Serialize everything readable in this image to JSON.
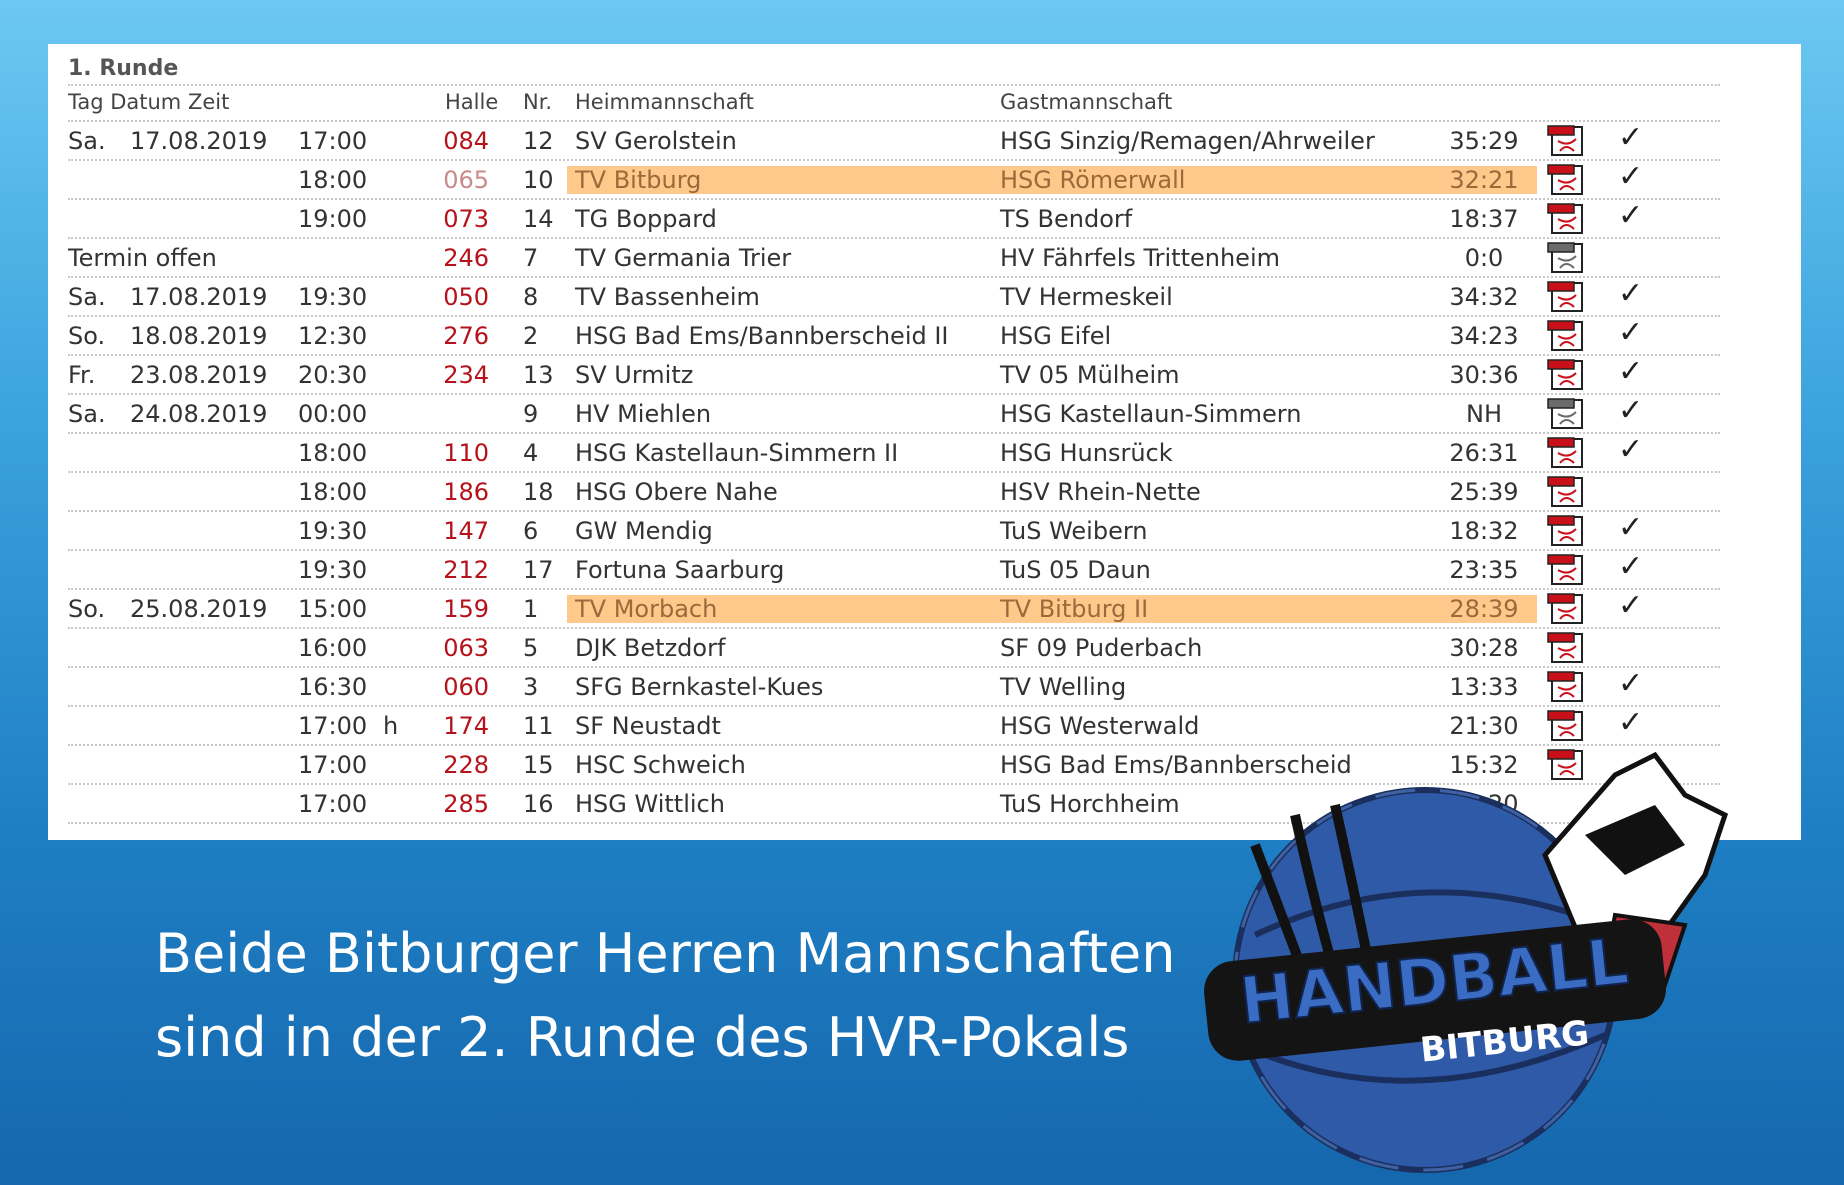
{
  "round_title": "1. Runde",
  "headers": {
    "tag_datum_zeit": "Tag Datum Zeit",
    "halle": "Halle",
    "nr": "Nr.",
    "heim": "Heimmannschaft",
    "gast": "Gastmannschaft"
  },
  "matches": [
    {
      "day": "Sa.",
      "date": "17.08.2019",
      "time": "17:00",
      "flag": "",
      "hall": "084",
      "nr": "12",
      "home": "SV Gerolstein",
      "guest": "HSG Sinzig/Remagen/Ahrweiler",
      "score": "35:29",
      "report": "red",
      "checked": true,
      "highlight": false,
      "hall_color": "#b5121b"
    },
    {
      "day": "",
      "date": "",
      "time": "18:00",
      "flag": "",
      "hall": "065",
      "nr": "10",
      "home": "TV Bitburg",
      "guest": "HSG Römerwall",
      "score": "32:21",
      "report": "red",
      "checked": true,
      "highlight": true,
      "hall_color": "#c98a8a"
    },
    {
      "day": "",
      "date": "",
      "time": "19:00",
      "flag": "",
      "hall": "073",
      "nr": "14",
      "home": "TG Boppard",
      "guest": "TS Bendorf",
      "score": "18:37",
      "report": "red",
      "checked": true,
      "highlight": false,
      "hall_color": "#b5121b"
    },
    {
      "day": "Termin offen",
      "date": "",
      "time": "",
      "flag": "",
      "hall": "246",
      "nr": "7",
      "home": "TV Germania Trier",
      "guest": "HV Fährfels Trittenheim",
      "score": "0:0",
      "report": "grey",
      "checked": false,
      "highlight": false,
      "hall_color": "#b5121b"
    },
    {
      "day": "Sa.",
      "date": "17.08.2019",
      "time": "19:30",
      "flag": "",
      "hall": "050",
      "nr": "8",
      "home": "TV Bassenheim",
      "guest": "TV Hermeskeil",
      "score": "34:32",
      "report": "red",
      "checked": true,
      "highlight": false,
      "hall_color": "#b5121b"
    },
    {
      "day": "So.",
      "date": "18.08.2019",
      "time": "12:30",
      "flag": "",
      "hall": "276",
      "nr": "2",
      "home": "HSG Bad Ems/Bannberscheid II",
      "guest": "HSG Eifel",
      "score": "34:23",
      "report": "red",
      "checked": true,
      "highlight": false,
      "hall_color": "#b5121b"
    },
    {
      "day": "Fr.",
      "date": "23.08.2019",
      "time": "20:30",
      "flag": "",
      "hall": "234",
      "nr": "13",
      "home": "SV Urmitz",
      "guest": "TV 05 Mülheim",
      "score": "30:36",
      "report": "red",
      "checked": true,
      "highlight": false,
      "hall_color": "#b5121b"
    },
    {
      "day": "Sa.",
      "date": "24.08.2019",
      "time": "00:00",
      "flag": "",
      "hall": "",
      "nr": "9",
      "home": "HV Miehlen",
      "guest": "HSG Kastellaun-Simmern",
      "score": "NH",
      "report": "grey",
      "checked": true,
      "highlight": false,
      "hall_color": "#b5121b"
    },
    {
      "day": "",
      "date": "",
      "time": "18:00",
      "flag": "",
      "hall": "110",
      "nr": "4",
      "home": "HSG Kastellaun-Simmern II",
      "guest": "HSG Hunsrück",
      "score": "26:31",
      "report": "red",
      "checked": true,
      "highlight": false,
      "hall_color": "#b5121b"
    },
    {
      "day": "",
      "date": "",
      "time": "18:00",
      "flag": "",
      "hall": "186",
      "nr": "18",
      "home": "HSG Obere Nahe",
      "guest": "HSV Rhein-Nette",
      "score": "25:39",
      "report": "red",
      "checked": false,
      "highlight": false,
      "hall_color": "#b5121b"
    },
    {
      "day": "",
      "date": "",
      "time": "19:30",
      "flag": "",
      "hall": "147",
      "nr": "6",
      "home": "GW Mendig",
      "guest": "TuS Weibern",
      "score": "18:32",
      "report": "red",
      "checked": true,
      "highlight": false,
      "hall_color": "#b5121b"
    },
    {
      "day": "",
      "date": "",
      "time": "19:30",
      "flag": "",
      "hall": "212",
      "nr": "17",
      "home": "Fortuna Saarburg",
      "guest": "TuS 05 Daun",
      "score": "23:35",
      "report": "red",
      "checked": true,
      "highlight": false,
      "hall_color": "#b5121b"
    },
    {
      "day": "So.",
      "date": "25.08.2019",
      "time": "15:00",
      "flag": "",
      "hall": "159",
      "nr": "1",
      "home": "TV Morbach",
      "guest": "TV Bitburg II",
      "score": "28:39",
      "report": "red",
      "checked": true,
      "highlight": true,
      "hall_color": "#b5121b"
    },
    {
      "day": "",
      "date": "",
      "time": "16:00",
      "flag": "",
      "hall": "063",
      "nr": "5",
      "home": "DJK Betzdorf",
      "guest": "SF 09 Puderbach",
      "score": "30:28",
      "report": "red",
      "checked": false,
      "highlight": false,
      "hall_color": "#b5121b"
    },
    {
      "day": "",
      "date": "",
      "time": "16:30",
      "flag": "",
      "hall": "060",
      "nr": "3",
      "home": "SFG Bernkastel-Kues",
      "guest": "TV Welling",
      "score": "13:33",
      "report": "red",
      "checked": true,
      "highlight": false,
      "hall_color": "#b5121b"
    },
    {
      "day": "",
      "date": "",
      "time": "17:00",
      "flag": "h",
      "hall": "174",
      "nr": "11",
      "home": "SF Neustadt",
      "guest": "HSG Westerwald",
      "score": "21:30",
      "report": "red",
      "checked": true,
      "highlight": false,
      "hall_color": "#b5121b"
    },
    {
      "day": "",
      "date": "",
      "time": "17:00",
      "flag": "",
      "hall": "228",
      "nr": "15",
      "home": "HSC Schweich",
      "guest": "HSG Bad Ems/Bannberscheid",
      "score": "15:32",
      "report": "red",
      "checked": false,
      "highlight": false,
      "hall_color": "#b5121b"
    },
    {
      "day": "",
      "date": "",
      "time": "17:00",
      "flag": "",
      "hall": "285",
      "nr": "16",
      "home": "HSG Wittlich",
      "guest": "TuS Horchheim",
      "score": "27:20",
      "report": "none",
      "checked": false,
      "highlight": false,
      "hall_color": "#b5121b"
    }
  ],
  "caption": {
    "line1": "Beide Bitburger Herren Mannschaften",
    "line2": "sind in der 2. Runde des HVR-Pokals"
  },
  "logo": {
    "word1": "HANDBALL",
    "word2": "BITBURG",
    "icon": "handball-eagle-logo"
  },
  "colors": {
    "hall_red": "#b5121b",
    "highlight": "#ffc98b",
    "caption": "#ffffff"
  }
}
